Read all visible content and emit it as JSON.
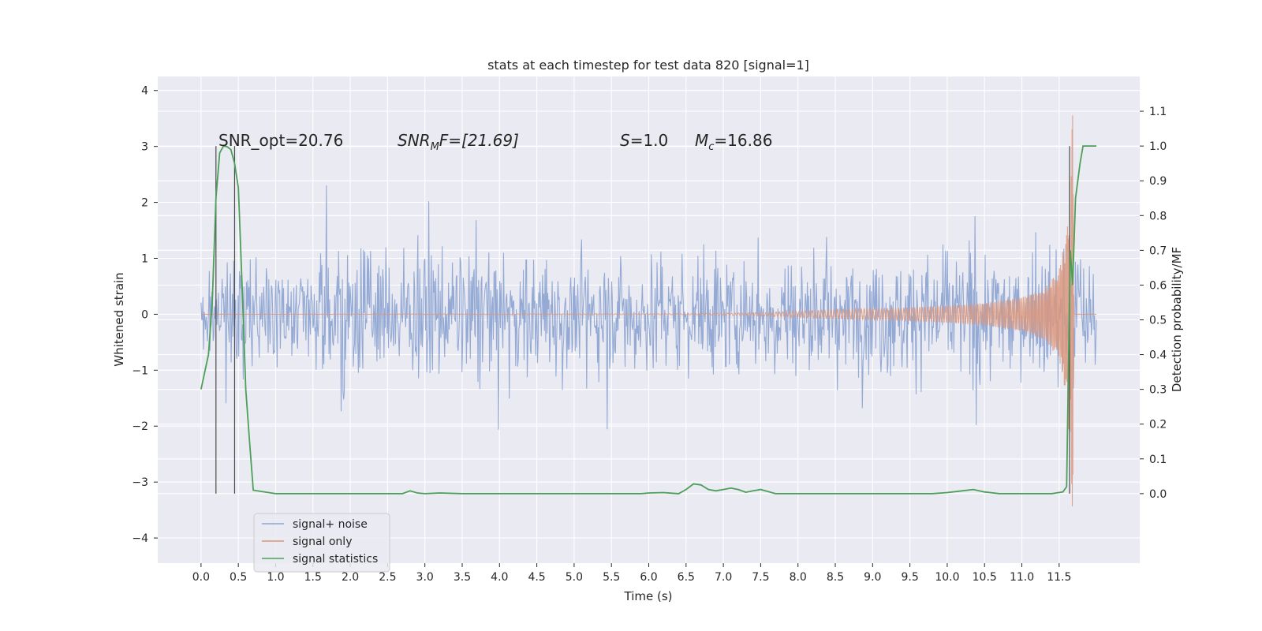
{
  "chart_data": {
    "type": "line",
    "title": "stats at each timestep for test data 820 [signal=1]",
    "xlabel": "Time (s)",
    "ylabel_left": "Whitened strain",
    "ylabel_right": "Detection probability/MF",
    "xlim": [
      -0.58,
      12.58
    ],
    "ylim_left": [
      -4.45,
      4.25
    ],
    "ylim_right": [
      -0.2,
      1.2
    ],
    "x_ticks": [
      "0.0",
      "0.5",
      "1.0",
      "1.5",
      "2.0",
      "2.5",
      "3.0",
      "3.5",
      "4.0",
      "4.5",
      "5.0",
      "5.5",
      "6.0",
      "6.5",
      "7.0",
      "7.5",
      "8.0",
      "8.5",
      "9.0",
      "9.5",
      "10.0",
      "10.5",
      "11.0",
      "11.5"
    ],
    "y_ticks_left": [
      "−4",
      "−3",
      "−2",
      "−1",
      "0",
      "1",
      "2",
      "3",
      "4"
    ],
    "y_ticks_right": [
      "0.0",
      "0.1",
      "0.2",
      "0.3",
      "0.4",
      "0.5",
      "0.6",
      "0.7",
      "0.8",
      "0.9",
      "1.0",
      "1.1"
    ],
    "grid": true,
    "legend_position": "lower-left",
    "annotations": {
      "snr_opt": "SNR_opt=20.76",
      "snr_mf_base": "SNR",
      "snr_mf_sub": "M",
      "snr_mf_rest": "F=[21.69]",
      "s_sym": "S",
      "s_val": "=1.0",
      "mc_sym": "M",
      "mc_sub": "c",
      "mc_val": "=16.86"
    },
    "series": [
      {
        "name": "signal+ noise",
        "color": "#8fa6d3",
        "axis": "left",
        "envelope": {
          "x_range": [
            0.0,
            12.0
          ],
          "typical_abs": 1.2,
          "peak_abs": 3.9
        }
      },
      {
        "name": "signal only",
        "color": "#d9967e",
        "axis": "left",
        "chirp": {
          "x": [
            0.0,
            6.5,
            7.5,
            8.5,
            9.5,
            10.0,
            10.5,
            11.0,
            11.3,
            11.5,
            11.6,
            11.65,
            11.68,
            11.7,
            12.0
          ],
          "amplitude": [
            0.0,
            0.01,
            0.03,
            0.08,
            0.12,
            0.15,
            0.2,
            0.3,
            0.45,
            0.8,
            1.5,
            2.5,
            3.6,
            0.0,
            0.0
          ]
        }
      },
      {
        "name": "signal statistics",
        "color": "#4c9f58",
        "axis": "right",
        "x": [
          0.0,
          0.05,
          0.1,
          0.15,
          0.2,
          0.25,
          0.3,
          0.35,
          0.4,
          0.45,
          0.5,
          0.55,
          0.6,
          0.65,
          0.7,
          1.0,
          2.0,
          2.7,
          2.8,
          2.9,
          3.0,
          3.2,
          3.5,
          4.0,
          5.0,
          5.5,
          5.9,
          6.0,
          6.2,
          6.4,
          6.5,
          6.6,
          6.7,
          6.8,
          6.9,
          7.0,
          7.1,
          7.2,
          7.3,
          7.4,
          7.5,
          7.6,
          7.7,
          8.0,
          9.0,
          9.8,
          10.0,
          10.2,
          10.35,
          10.5,
          10.7,
          11.0,
          11.4,
          11.55,
          11.6,
          11.62,
          11.65,
          11.68,
          11.72,
          11.78,
          11.82,
          11.9,
          12.0
        ],
        "y": [
          0.3,
          0.35,
          0.4,
          0.55,
          0.85,
          0.98,
          1.0,
          0.998,
          0.99,
          0.95,
          0.88,
          0.6,
          0.3,
          0.15,
          0.01,
          0.0,
          0.0,
          0.0,
          0.008,
          0.002,
          0.0,
          0.002,
          0.0,
          0.0,
          0.0,
          0.0,
          0.0,
          0.002,
          0.003,
          0.0,
          0.012,
          0.028,
          0.025,
          0.012,
          0.008,
          0.012,
          0.016,
          0.012,
          0.004,
          0.008,
          0.012,
          0.006,
          0.0,
          0.0,
          0.0,
          0.0,
          0.003,
          0.008,
          0.012,
          0.005,
          0.0,
          0.0,
          0.0,
          0.005,
          0.02,
          0.3,
          0.7,
          0.6,
          0.85,
          0.95,
          1.0,
          1.0,
          1.0
        ]
      }
    ],
    "vertical_lines": [
      {
        "x": 0.2,
        "color": "#4a4a4a"
      },
      {
        "x": 0.45,
        "color": "#4a4a4a"
      },
      {
        "x": 11.64,
        "color": "#4a4a4a"
      }
    ]
  }
}
